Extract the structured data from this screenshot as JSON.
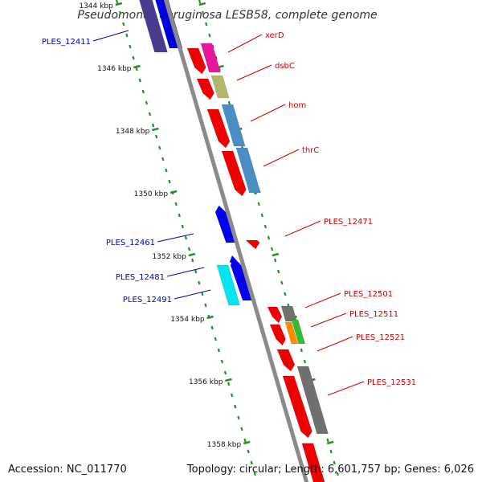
{
  "title": "Pseudomonas aeruginosa LESB58, complete genome",
  "footer": {
    "accession": "Accession: NC_011770",
    "summary": "Topology: circular; Length: 6,601,757 bp; Genes: 6,026"
  },
  "colors": {
    "backbone": "#8a8a8a",
    "tick": "#2e8b2e",
    "forward_label": "#cc0000",
    "reverse_label": "#0000aa"
  },
  "ticks": [
    {
      "label": "1344 kbp"
    },
    {
      "label": "1346 kbp"
    },
    {
      "label": "1348 kbp"
    },
    {
      "label": "1350 kbp"
    },
    {
      "label": "1352 kbp"
    },
    {
      "label": "1354 kbp"
    },
    {
      "label": "1356 kbp"
    },
    {
      "label": "1358 kbp"
    }
  ],
  "forward_labels": [
    {
      "text": "xerD"
    },
    {
      "text": "dsbC"
    },
    {
      "text": "hom"
    },
    {
      "text": "thrC"
    },
    {
      "text": "PLES_12471"
    },
    {
      "text": "PLES_12501"
    },
    {
      "text": "PLES_12511"
    },
    {
      "text": "PLES_12521"
    },
    {
      "text": "PLES_12531"
    }
  ],
  "reverse_labels": [
    {
      "text": "PLES_12411"
    },
    {
      "text": "PLES_12461"
    },
    {
      "text": "PLES_12481"
    },
    {
      "text": "PLES_12491"
    }
  ]
}
